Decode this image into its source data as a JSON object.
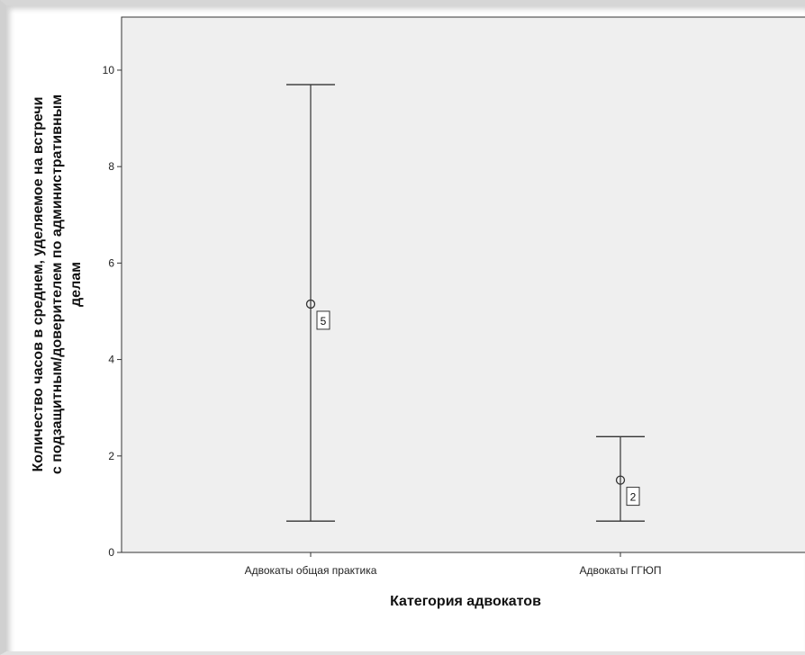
{
  "chart_data": {
    "type": "errorbar",
    "categories": [
      "Адвокаты общая практика",
      "Адвокаты ГГЮП"
    ],
    "points": [
      {
        "category": "Адвокаты общая практика",
        "mean": 5.15,
        "lower": 0.65,
        "upper": 9.7,
        "n": "5"
      },
      {
        "category": "Адвокаты ГГЮП",
        "mean": 1.5,
        "lower": 0.65,
        "upper": 2.4,
        "n": "2"
      }
    ],
    "yticks": [
      0,
      2,
      4,
      6,
      8,
      10
    ],
    "ylim": [
      0,
      11.1
    ],
    "xlabel": "Категория адвокатов",
    "ylabel_lines": [
      "Количество часов в среднем, уделяемое на встречи",
      "с подзащитным/доверителем по административным",
      "делам"
    ],
    "colors": {
      "plot_background": "#efefef",
      "line": "#333333"
    }
  }
}
